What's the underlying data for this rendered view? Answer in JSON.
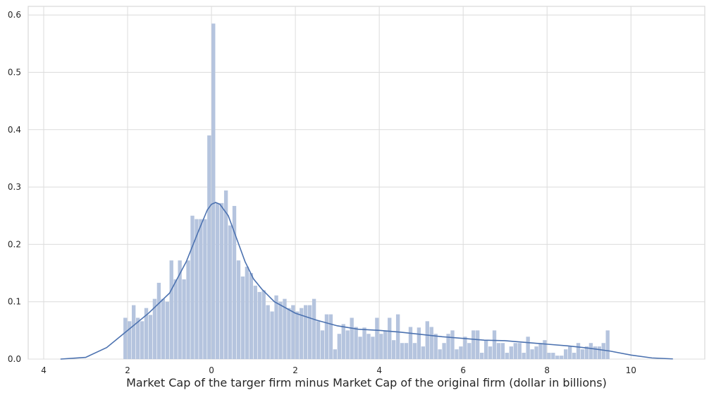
{
  "chart_data": {
    "type": "histogram",
    "x_label": "Market Cap of the targer firm minus Market Cap of the original firm (dollar in billions)",
    "bins": [
      -2.1,
      -2.0,
      -1.9,
      -1.8,
      -1.7,
      -1.6,
      -1.5,
      -1.4,
      -1.3,
      -1.2,
      -1.1,
      -1.0,
      -0.9,
      -0.8,
      -0.7,
      -0.6,
      -0.5,
      -0.4,
      -0.3,
      -0.2,
      -0.1,
      0.0,
      0.1,
      0.2,
      0.3,
      0.4,
      0.5,
      0.6,
      0.7,
      0.8,
      0.9,
      1.0,
      1.1,
      1.2,
      1.3,
      1.4,
      1.5,
      1.6,
      1.7,
      1.8,
      1.9,
      2.0,
      2.1,
      2.2,
      2.3,
      2.4,
      2.5,
      2.6,
      2.7,
      2.8,
      2.9,
      3.0,
      3.1,
      3.2,
      3.3,
      3.4,
      3.5,
      3.6,
      3.7,
      3.8,
      3.9,
      4.0,
      4.1,
      4.2,
      4.3,
      4.4,
      4.5,
      4.6,
      4.7,
      4.8,
      4.9,
      5.0,
      5.1,
      5.2,
      5.3,
      5.4,
      5.5,
      5.6,
      5.7,
      5.8,
      5.9,
      6.0,
      6.1,
      6.2,
      6.3,
      6.4,
      6.5,
      6.6,
      6.7,
      6.8,
      6.9,
      7.0,
      7.1,
      7.2,
      7.3,
      7.4,
      7.5,
      7.6,
      7.7,
      7.8,
      7.9,
      8.0,
      8.1,
      8.2,
      8.3,
      8.4,
      8.5,
      8.6,
      8.7,
      8.8,
      8.9,
      9.0,
      9.1,
      9.2,
      9.3,
      9.4,
      9.5
    ],
    "values": [
      0.072,
      0.066,
      0.094,
      0.072,
      0.066,
      0.089,
      0.077,
      0.105,
      0.133,
      0.105,
      0.1,
      0.172,
      0.139,
      0.172,
      0.139,
      0.172,
      0.25,
      0.244,
      0.244,
      0.244,
      0.39,
      0.585,
      0.272,
      0.272,
      0.294,
      0.233,
      0.267,
      0.172,
      0.144,
      0.161,
      0.15,
      0.128,
      0.117,
      0.12,
      0.094,
      0.083,
      0.111,
      0.1,
      0.105,
      0.089,
      0.094,
      0.083,
      0.089,
      0.094,
      0.094,
      0.105,
      0.066,
      0.05,
      0.078,
      0.078,
      0.017,
      0.044,
      0.061,
      0.05,
      0.072,
      0.056,
      0.039,
      0.055,
      0.044,
      0.039,
      0.072,
      0.044,
      0.05,
      0.072,
      0.033,
      0.078,
      0.028,
      0.028,
      0.056,
      0.028,
      0.055,
      0.022,
      0.066,
      0.056,
      0.044,
      0.017,
      0.028,
      0.044,
      0.05,
      0.017,
      0.022,
      0.039,
      0.028,
      0.05,
      0.05,
      0.011,
      0.033,
      0.022,
      0.05,
      0.028,
      0.028,
      0.011,
      0.022,
      0.028,
      0.028,
      0.011,
      0.039,
      0.017,
      0.022,
      0.028,
      0.033,
      0.011,
      0.011,
      0.006,
      0.006,
      0.017,
      0.022,
      0.011,
      0.028,
      0.017,
      0.022,
      0.028,
      0.022,
      0.022,
      0.028,
      0.05
    ],
    "color": "#b5c4de",
    "kde_x": [
      -3.6,
      -3,
      -2.5,
      -2,
      -1.5,
      -1,
      -0.6,
      -0.3,
      -0.1,
      0,
      0.1,
      0.2,
      0.4,
      0.6,
      0.8,
      1,
      1.2,
      1.5,
      2,
      2.5,
      3,
      3.5,
      4,
      4.5,
      5,
      5.5,
      6,
      6.5,
      7,
      7.5,
      8,
      8.5,
      9,
      9.5,
      10,
      10.5,
      11
    ],
    "kde_y": [
      0,
      0.003,
      0.02,
      0.05,
      0.08,
      0.115,
      0.17,
      0.225,
      0.26,
      0.27,
      0.273,
      0.27,
      0.25,
      0.21,
      0.17,
      0.14,
      0.122,
      0.1,
      0.08,
      0.068,
      0.058,
      0.052,
      0.05,
      0.047,
      0.043,
      0.039,
      0.036,
      0.033,
      0.032,
      0.029,
      0.026,
      0.023,
      0.019,
      0.014,
      0.007,
      0.002,
      0.0003
    ],
    "kde_color": "#4c72b0",
    "xlim": [
      -4.37,
      11.76
    ],
    "ylim": [
      0,
      0.615
    ],
    "xticks": [
      {
        "value": -4,
        "label": "4"
      },
      {
        "value": -2,
        "label": "2"
      },
      0,
      2,
      4,
      6,
      8,
      10
    ],
    "yticks": [
      {
        "value": 0,
        "label": "0.0"
      },
      0.1,
      0.2,
      0.3,
      0.4,
      0.5,
      0.6
    ],
    "grid": true
  }
}
